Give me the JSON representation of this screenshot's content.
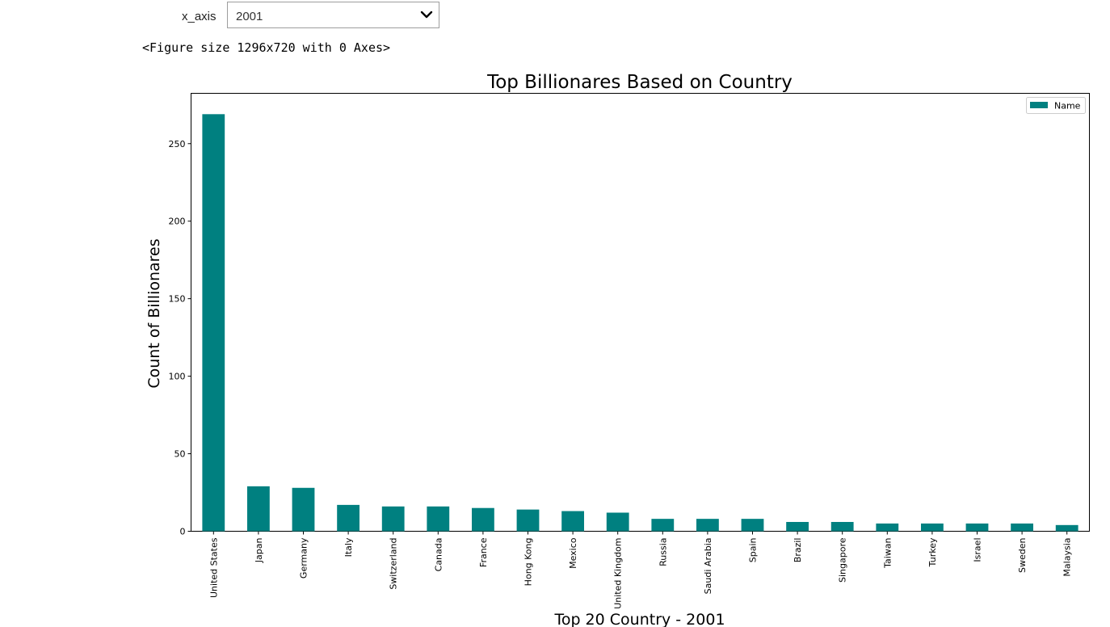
{
  "widget": {
    "label": "x_axis",
    "selected_value": "2001",
    "dropdown_icon": "chevron-down-icon"
  },
  "output": {
    "text": "<Figure size 1296x720 with 0 Axes>"
  },
  "chart_data": {
    "type": "bar",
    "title": "Top Billionares Based on Country",
    "xlabel": "Top 20 Country - 2001",
    "ylabel": "Count of Billionares",
    "categories": [
      "United States",
      "Japan",
      "Germany",
      "Italy",
      "Switzerland",
      "Canada",
      "France",
      "Hong Kong",
      "Mexico",
      "United Kingdom",
      "Russia",
      "Saudi Arabia",
      "Spain",
      "Brazil",
      "Singapore",
      "Taiwan",
      "Turkey",
      "Israel",
      "Sweden",
      "Malaysia"
    ],
    "series": [
      {
        "name": "Name",
        "color": "#008080",
        "values": [
          269,
          29,
          28,
          17,
          16,
          16,
          15,
          14,
          13,
          12,
          8,
          8,
          8,
          6,
          6,
          5,
          5,
          5,
          5,
          4
        ]
      }
    ],
    "yticks": [
      0,
      50,
      100,
      150,
      200,
      250
    ],
    "ylim": [
      0,
      282.45
    ],
    "grid": false,
    "legend_position": "top-right"
  }
}
